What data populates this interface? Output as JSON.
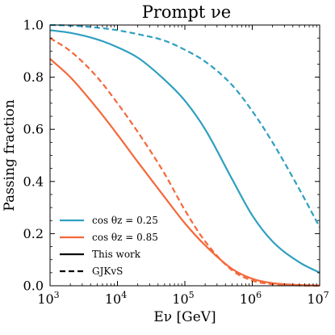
{
  "chart_data": {
    "type": "line",
    "title": "Prompt νe",
    "xlabel": "Eν [GeV]",
    "ylabel": "Passing fraction",
    "xscale": "log",
    "xlim": [
      1000,
      10000000
    ],
    "ylim": [
      0.0,
      1.0
    ],
    "x_ticks": [
      {
        "value": 1000,
        "label_base": "10",
        "label_exp": "3"
      },
      {
        "value": 10000,
        "label_base": "10",
        "label_exp": "4"
      },
      {
        "value": 100000,
        "label_base": "10",
        "label_exp": "5"
      },
      {
        "value": 1000000,
        "label_base": "10",
        "label_exp": "6"
      },
      {
        "value": 10000000,
        "label_base": "10",
        "label_exp": "7"
      }
    ],
    "y_ticks": [
      {
        "value": 0.0,
        "label": "0.0"
      },
      {
        "value": 0.2,
        "label": "0.2"
      },
      {
        "value": 0.4,
        "label": "0.4"
      },
      {
        "value": 0.6,
        "label": "0.6"
      },
      {
        "value": 0.8,
        "label": "0.8"
      },
      {
        "value": 1.0,
        "label": "1.0"
      }
    ],
    "grid": false,
    "legend_placement": "lower-left",
    "legend": [
      {
        "label": "cos θz = 0.25",
        "color": "#2e9fc0",
        "style": "solid"
      },
      {
        "label": "cos θz = 0.85",
        "color": "#f4683a",
        "style": "solid"
      },
      {
        "label": "This work",
        "color": "#000000",
        "style": "solid"
      },
      {
        "label": "GJKvS",
        "color": "#000000",
        "style": "dashed"
      }
    ],
    "series": [
      {
        "color": "#2e9fc0",
        "style": "solid",
        "x": [
          1000,
          2000,
          5000,
          10000,
          20000,
          50000,
          100000,
          200000,
          500000,
          1000000,
          2000000,
          5000000,
          10000000
        ],
        "y": [
          0.98,
          0.97,
          0.945,
          0.915,
          0.875,
          0.79,
          0.71,
          0.6,
          0.41,
          0.27,
          0.17,
          0.09,
          0.05
        ]
      },
      {
        "color": "#2e9fc0",
        "style": "dashed",
        "x": [
          1000,
          2000,
          5000,
          10000,
          20000,
          50000,
          100000,
          200000,
          500000,
          1000000,
          2000000,
          5000000,
          10000000
        ],
        "y": [
          1.0,
          0.998,
          0.99,
          0.98,
          0.965,
          0.94,
          0.905,
          0.86,
          0.77,
          0.67,
          0.55,
          0.37,
          0.225
        ]
      },
      {
        "color": "#f4683a",
        "style": "solid",
        "x": [
          1000,
          2000,
          5000,
          10000,
          20000,
          50000,
          100000,
          200000,
          500000,
          1000000,
          2000000,
          5000000,
          10000000
        ],
        "y": [
          0.87,
          0.8,
          0.68,
          0.58,
          0.475,
          0.34,
          0.24,
          0.155,
          0.065,
          0.027,
          0.01,
          0.003,
          0.001
        ]
      },
      {
        "color": "#f4683a",
        "style": "dashed",
        "x": [
          1000,
          2000,
          5000,
          10000,
          20000,
          50000,
          100000,
          200000,
          500000,
          1000000,
          2000000,
          5000000,
          10000000
        ],
        "y": [
          0.95,
          0.9,
          0.8,
          0.7,
          0.59,
          0.43,
          0.29,
          0.17,
          0.06,
          0.02,
          0.006,
          0.001,
          0.0
        ]
      }
    ]
  }
}
